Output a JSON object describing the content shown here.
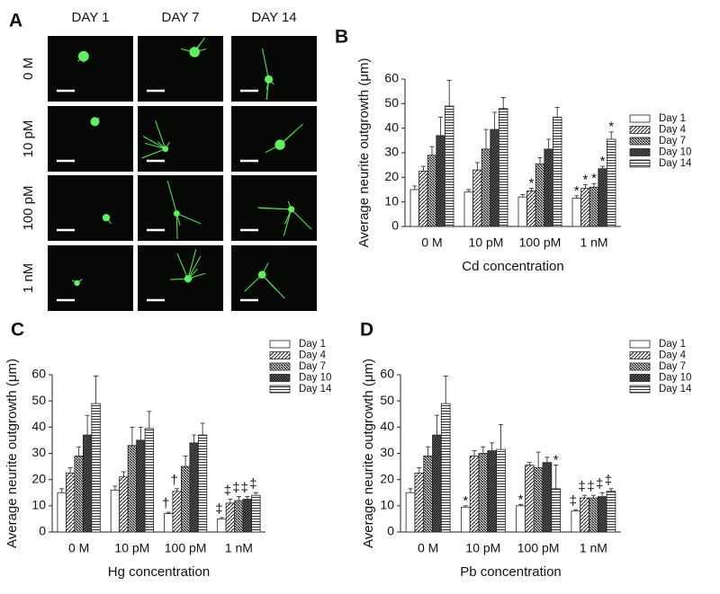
{
  "panel_a": {
    "label": "A",
    "columns": [
      "DAY 1",
      "DAY 7",
      "DAY 14"
    ],
    "rows": [
      "0 M",
      "10 pM",
      "100 pM",
      "1 nM"
    ]
  },
  "chart_data": [
    {
      "type": "bar",
      "label": "B",
      "xlabel": "Cd concentration",
      "ylabel": "Average neurite outgrowth (μm)",
      "categories": [
        "0 M",
        "10 pM",
        "100 pM",
        "1 nM"
      ],
      "ylim": [
        0,
        60
      ],
      "yticks": [
        0,
        10,
        20,
        30,
        40,
        50,
        60
      ],
      "series": [
        {
          "name": "Day 1",
          "pattern": "white",
          "values": [
            15,
            14,
            12,
            11.5
          ],
          "errors": [
            1.5,
            1,
            1,
            1
          ],
          "markers": [
            null,
            null,
            null,
            "*"
          ]
        },
        {
          "name": "Day 4",
          "pattern": "diagonal",
          "values": [
            22.5,
            23,
            14.5,
            15.5
          ],
          "errors": [
            2,
            3,
            1,
            1.5
          ],
          "markers": [
            null,
            null,
            "*",
            "*"
          ]
        },
        {
          "name": "Day 7",
          "pattern": "diagonal-dense",
          "values": [
            29,
            31.5,
            25.5,
            16
          ],
          "errors": [
            3.5,
            8,
            2.5,
            1.5
          ],
          "markers": [
            null,
            null,
            null,
            "*"
          ]
        },
        {
          "name": "Day 10",
          "pattern": "dark",
          "values": [
            37,
            39.5,
            31.5,
            23.5
          ],
          "errors": [
            7.5,
            7,
            4,
            1
          ],
          "markers": [
            null,
            null,
            null,
            "*"
          ]
        },
        {
          "name": "Day 14",
          "pattern": "horizontal",
          "values": [
            49,
            48,
            44.5,
            35.5
          ],
          "errors": [
            10.5,
            4.5,
            4,
            3
          ],
          "markers": [
            null,
            null,
            null,
            "*"
          ]
        }
      ]
    },
    {
      "type": "bar",
      "label": "C",
      "xlabel": "Hg concentration",
      "ylabel": "Average neurite outgrowth (μm)",
      "categories": [
        "0 M",
        "10 pM",
        "100 pM",
        "1 nM"
      ],
      "ylim": [
        0,
        60
      ],
      "yticks": [
        0,
        10,
        20,
        30,
        40,
        50,
        60
      ],
      "series": [
        {
          "name": "Day 1",
          "pattern": "white",
          "values": [
            15,
            16,
            7,
            5
          ],
          "errors": [
            1.5,
            1.5,
            0.5,
            0.5
          ],
          "markers": [
            null,
            null,
            "†",
            "‡"
          ]
        },
        {
          "name": "Day 4",
          "pattern": "diagonal",
          "values": [
            22.5,
            21,
            15.5,
            11
          ],
          "errors": [
            2,
            2,
            1,
            1.5
          ],
          "markers": [
            null,
            null,
            "†",
            "‡"
          ]
        },
        {
          "name": "Day 7",
          "pattern": "diagonal-dense",
          "values": [
            29,
            33,
            25,
            12
          ],
          "errors": [
            3.5,
            7,
            4,
            1.5
          ],
          "markers": [
            null,
            null,
            null,
            "‡"
          ]
        },
        {
          "name": "Day 10",
          "pattern": "dark",
          "values": [
            37,
            35,
            34,
            12.5
          ],
          "errors": [
            7.5,
            5,
            3,
            1
          ],
          "markers": [
            null,
            null,
            null,
            "‡"
          ]
        },
        {
          "name": "Day 14",
          "pattern": "horizontal",
          "values": [
            49,
            39.5,
            37,
            14
          ],
          "errors": [
            10.5,
            6.5,
            4.5,
            1
          ],
          "markers": [
            null,
            null,
            null,
            "‡"
          ]
        }
      ]
    },
    {
      "type": "bar",
      "label": "D",
      "xlabel": "Pb concentration",
      "ylabel": "Average neurite outgrowth (μm)",
      "categories": [
        "0 M",
        "10 pM",
        "100 pM",
        "1 nM"
      ],
      "ylim": [
        0,
        60
      ],
      "yticks": [
        0,
        10,
        20,
        30,
        40,
        50,
        60
      ],
      "series": [
        {
          "name": "Day 1",
          "pattern": "white",
          "values": [
            15,
            9.5,
            10,
            8
          ],
          "errors": [
            1.5,
            0.5,
            0.5,
            0.5
          ],
          "markers": [
            null,
            "*",
            "*",
            "‡"
          ]
        },
        {
          "name": "Day 4",
          "pattern": "diagonal",
          "values": [
            22.5,
            29,
            25.5,
            13
          ],
          "errors": [
            2,
            2,
            1,
            1
          ],
          "markers": [
            null,
            null,
            null,
            "‡"
          ]
        },
        {
          "name": "Day 7",
          "pattern": "diagonal-dense",
          "values": [
            29,
            30,
            24.5,
            13
          ],
          "errors": [
            3.5,
            2.5,
            6,
            1
          ],
          "markers": [
            null,
            null,
            null,
            "‡"
          ]
        },
        {
          "name": "Day 10",
          "pattern": "dark",
          "values": [
            37,
            31,
            26.5,
            13.5
          ],
          "errors": [
            7.5,
            3,
            2,
            1.5
          ],
          "markers": [
            null,
            null,
            null,
            "‡"
          ]
        },
        {
          "name": "Day 14",
          "pattern": "horizontal",
          "values": [
            49,
            31.5,
            16.5,
            15.5
          ],
          "errors": [
            10.5,
            9.5,
            9,
            1
          ],
          "markers": [
            null,
            null,
            "*",
            "‡"
          ]
        }
      ]
    }
  ]
}
